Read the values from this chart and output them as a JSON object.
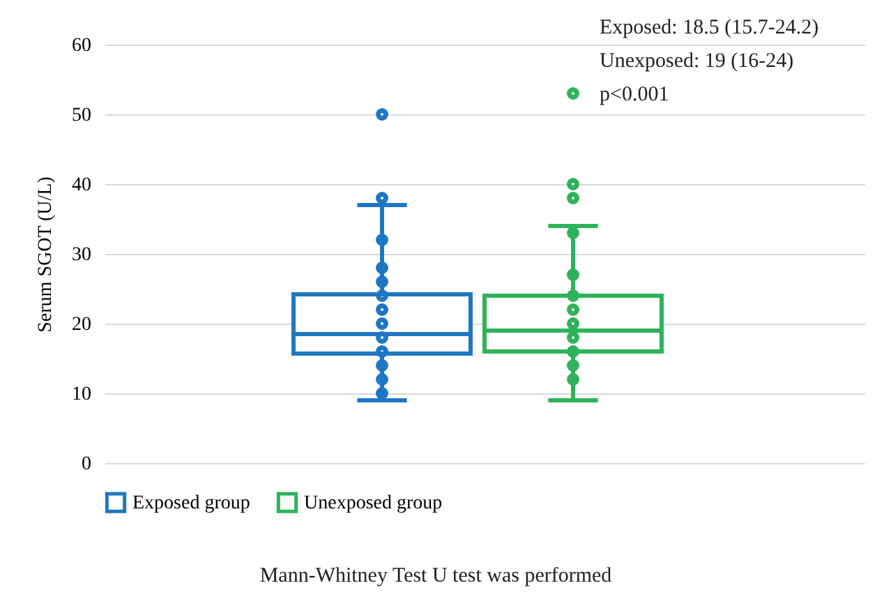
{
  "chart_data": {
    "type": "box",
    "ylabel": "Serum SGOT (U/L)",
    "categories": [
      null
    ],
    "series": [
      {
        "name": "Exposed group",
        "color": "#1f77c4",
        "boxes": [
          {
            "low": 9,
            "q1": 15.7,
            "median": 18.5,
            "q3": 24.2,
            "high": 37,
            "outliers": [
              50,
              38,
              32,
              28,
              26,
              24,
              22,
              20,
              18,
              16,
              14,
              12,
              10
            ]
          }
        ]
      },
      {
        "name": "Unexposed group",
        "color": "#2db35a",
        "boxes": [
          {
            "low": 9,
            "q1": 16,
            "median": 19,
            "q3": 24,
            "high": 34,
            "outliers": [
              53,
              40,
              38,
              33,
              27,
              24,
              22,
              20,
              18,
              16,
              14,
              12
            ]
          }
        ]
      }
    ],
    "ylim": [
      0,
      60
    ],
    "yticks": [
      0,
      10,
      20,
      30,
      40,
      50,
      60
    ],
    "grid": "y",
    "legend": "bottom",
    "marker": "circle",
    "tick_labels": "y",
    "annotations": [
      "Exposed: 18.5 (15.7-24.2)",
      "Unexposed: 19 (16-24)",
      "p<0.001",
      "Mann-Whitney Test U test was performed"
    ]
  }
}
